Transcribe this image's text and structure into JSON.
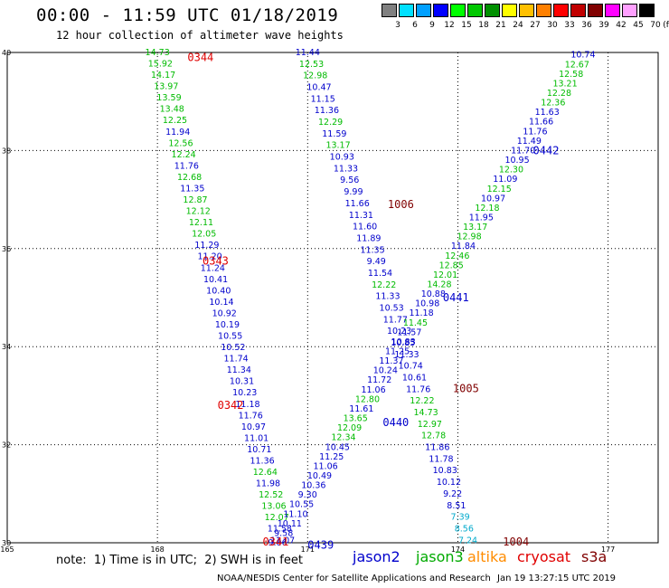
{
  "header": {
    "title": "00:00 - 11:59 UTC 01/18/2019",
    "subtitle": "12 hour collection of altimeter wave heights"
  },
  "legend": {
    "unit": "(ft)",
    "bins": [
      {
        "label": "3",
        "color": "#808080"
      },
      {
        "label": "6",
        "color": "#00e0ff"
      },
      {
        "label": "9",
        "color": "#00a0ff"
      },
      {
        "label": "12",
        "color": "#0000ff"
      },
      {
        "label": "15",
        "color": "#00ff00"
      },
      {
        "label": "18",
        "color": "#00c800"
      },
      {
        "label": "21",
        "color": "#009000"
      },
      {
        "label": "24",
        "color": "#ffff00"
      },
      {
        "label": "27",
        "color": "#ffc000"
      },
      {
        "label": "30",
        "color": "#ff8000"
      },
      {
        "label": "33",
        "color": "#ff0000"
      },
      {
        "label": "36",
        "color": "#c00000"
      },
      {
        "label": "39",
        "color": "#800000"
      },
      {
        "label": "42",
        "color": "#ff00ff"
      },
      {
        "label": "45",
        "color": "#ffa0ff"
      },
      {
        "label": "70",
        "color": "#000000"
      }
    ]
  },
  "footer": {
    "note": "note:  1) Time is in UTC;  2) SWH is in feet",
    "satellites": [
      {
        "name": "jason2",
        "color": "#0000cc"
      },
      {
        "name": "jason3",
        "color": "#00aa00"
      },
      {
        "name": "altika",
        "color": "#ff8c00"
      },
      {
        "name": "cryosat",
        "color": "#e00000"
      },
      {
        "name": "s3a",
        "color": "#800000"
      }
    ],
    "credit": "NOAA/NESDIS Center for Satellite Applications and Research",
    "timestamp": "Jan 19 13:27:15 UTC 2019"
  },
  "chart_data": {
    "type": "scatter",
    "xlim": [
      165,
      178
    ],
    "ylim": [
      30,
      40
    ],
    "xticks": [
      "165",
      "168",
      "171",
      "174",
      "177"
    ],
    "yticks": [
      "40",
      "38",
      "36",
      "34",
      "32",
      "30"
    ],
    "grid": true,
    "colors": {
      "blue": "#0000cc",
      "green": "#00bb00",
      "cyan": "#00aacc",
      "red": "#e00000",
      "darkred": "#800000"
    },
    "tracks": [
      {
        "name": "left-descending",
        "x_start": 168.0,
        "x_end": 170.5,
        "points": [
          [
            "14.73",
            "green"
          ],
          [
            "15.92",
            "green"
          ],
          [
            "14.17",
            "green"
          ],
          [
            "13.97",
            "green"
          ],
          [
            "13.59",
            "green"
          ],
          [
            "13.48",
            "green"
          ],
          [
            "12.25",
            "green"
          ],
          [
            "11.94",
            "blue"
          ],
          [
            "12.56",
            "green"
          ],
          [
            "12.24",
            "green"
          ],
          [
            "11.76",
            "blue"
          ],
          [
            "12.68",
            "green"
          ],
          [
            "11.35",
            "blue"
          ],
          [
            "12.87",
            "green"
          ],
          [
            "12.12",
            "green"
          ],
          [
            "12.11",
            "green"
          ],
          [
            "12.05",
            "green"
          ],
          [
            "11.29",
            "blue"
          ],
          [
            "11.20",
            "blue"
          ],
          [
            "11.24",
            "blue"
          ],
          [
            "10.41",
            "blue"
          ],
          [
            "10.40",
            "blue"
          ],
          [
            "10.14",
            "blue"
          ],
          [
            "10.92",
            "blue"
          ],
          [
            "10.19",
            "blue"
          ],
          [
            "10.55",
            "blue"
          ],
          [
            "10.52",
            "blue"
          ],
          [
            "11.74",
            "blue"
          ],
          [
            "11.34",
            "blue"
          ],
          [
            "10.31",
            "blue"
          ],
          [
            "10.23",
            "blue"
          ],
          [
            "11.18",
            "blue"
          ],
          [
            "11.76",
            "blue"
          ],
          [
            "10.97",
            "blue"
          ],
          [
            "11.01",
            "blue"
          ],
          [
            "10.71",
            "blue"
          ],
          [
            "11.36",
            "blue"
          ],
          [
            "12.64",
            "green"
          ],
          [
            "11.98",
            "blue"
          ],
          [
            "12.52",
            "green"
          ],
          [
            "13.06",
            "green"
          ],
          [
            "12.07",
            "green"
          ],
          [
            "11.58",
            "blue"
          ],
          [
            "11.07",
            "blue"
          ]
        ]
      },
      {
        "name": "mid-descending",
        "x_start": 171.0,
        "x_end": 174.2,
        "points": [
          [
            "11.44",
            "blue"
          ],
          [
            "12.53",
            "green"
          ],
          [
            "12.98",
            "green"
          ],
          [
            "10.47",
            "blue"
          ],
          [
            "11.15",
            "blue"
          ],
          [
            "11.36",
            "blue"
          ],
          [
            "12.29",
            "green"
          ],
          [
            "11.59",
            "blue"
          ],
          [
            "13.17",
            "green"
          ],
          [
            "10.93",
            "blue"
          ],
          [
            "11.33",
            "blue"
          ],
          [
            "9.56",
            "blue"
          ],
          [
            "9.99",
            "blue"
          ],
          [
            "11.66",
            "blue"
          ],
          [
            "11.31",
            "blue"
          ],
          [
            "11.60",
            "blue"
          ],
          [
            "11.89",
            "blue"
          ],
          [
            "11.35",
            "blue"
          ],
          [
            "9.49",
            "blue"
          ],
          [
            "11.54",
            "blue"
          ],
          [
            "12.22",
            "green"
          ],
          [
            "11.33",
            "blue"
          ],
          [
            "10.53",
            "blue"
          ],
          [
            "11.77",
            "blue"
          ],
          [
            "10.23",
            "blue"
          ],
          [
            "10.85",
            "blue"
          ],
          [
            "11.33",
            "blue"
          ],
          [
            "10.74",
            "blue"
          ],
          [
            "10.61",
            "blue"
          ],
          [
            "11.76",
            "blue"
          ],
          [
            "12.22",
            "green"
          ],
          [
            "14.73",
            "green"
          ],
          [
            "12.97",
            "green"
          ],
          [
            "12.78",
            "green"
          ],
          [
            "11.86",
            "blue"
          ],
          [
            "11.78",
            "blue"
          ],
          [
            "10.83",
            "blue"
          ],
          [
            "10.12",
            "blue"
          ],
          [
            "9.22",
            "blue"
          ],
          [
            "8.51",
            "blue"
          ],
          [
            "7.39",
            "cyan"
          ],
          [
            "8.56",
            "cyan"
          ],
          [
            "7.24",
            "cyan"
          ]
        ]
      },
      {
        "name": "ascending",
        "x_start": 170.4,
        "x_end": 176.5,
        "points": [
          [
            "9.06",
            "blue"
          ],
          [
            "9.58",
            "blue"
          ],
          [
            "10.11",
            "blue"
          ],
          [
            "11.10",
            "blue"
          ],
          [
            "10.55",
            "blue"
          ],
          [
            "9.30",
            "blue"
          ],
          [
            "10.36",
            "blue"
          ],
          [
            "10.49",
            "blue"
          ],
          [
            "11.06",
            "blue"
          ],
          [
            "11.25",
            "blue"
          ],
          [
            "10.45",
            "blue"
          ],
          [
            "12.34",
            "green"
          ],
          [
            "12.09",
            "green"
          ],
          [
            "13.65",
            "green"
          ],
          [
            "11.61",
            "blue"
          ],
          [
            "12.80",
            "green"
          ],
          [
            "11.06",
            "blue"
          ],
          [
            "11.72",
            "blue"
          ],
          [
            "10.24",
            "blue"
          ],
          [
            "11.37",
            "blue"
          ],
          [
            "11.25",
            "blue"
          ],
          [
            "10.83",
            "blue"
          ],
          [
            "11.57",
            "blue"
          ],
          [
            "11.45",
            "green"
          ],
          [
            "11.18",
            "blue"
          ],
          [
            "10.98",
            "blue"
          ],
          [
            "10.88",
            "blue"
          ],
          [
            "14.28",
            "green"
          ],
          [
            "12.01",
            "green"
          ],
          [
            "12.85",
            "green"
          ],
          [
            "12.46",
            "green"
          ],
          [
            "11.84",
            "blue"
          ],
          [
            "12.98",
            "green"
          ],
          [
            "13.17",
            "green"
          ],
          [
            "11.95",
            "blue"
          ],
          [
            "12.18",
            "green"
          ],
          [
            "10.97",
            "blue"
          ],
          [
            "12.15",
            "green"
          ],
          [
            "11.09",
            "blue"
          ],
          [
            "12.30",
            "green"
          ],
          [
            "10.95",
            "blue"
          ],
          [
            "11.70",
            "blue"
          ],
          [
            "11.49",
            "blue"
          ],
          [
            "11.76",
            "blue"
          ],
          [
            "11.66",
            "blue"
          ],
          [
            "11.63",
            "blue"
          ],
          [
            "12.36",
            "green"
          ],
          [
            "12.28",
            "green"
          ],
          [
            "13.21",
            "green"
          ],
          [
            "12.58",
            "green"
          ],
          [
            "12.67",
            "green"
          ],
          [
            "10.74",
            "blue"
          ]
        ]
      }
    ],
    "time_labels": [
      {
        "text": "0344",
        "x": 168.6,
        "y": 39.9,
        "color": "red"
      },
      {
        "text": "0343",
        "x": 168.9,
        "y": 35.75,
        "color": "red"
      },
      {
        "text": "0342",
        "x": 169.2,
        "y": 32.8,
        "color": "red"
      },
      {
        "text": "0341",
        "x": 170.1,
        "y": 30.02,
        "color": "red"
      },
      {
        "text": "0439",
        "x": 171.0,
        "y": 29.95,
        "color": "blue"
      },
      {
        "text": "0440",
        "x": 172.5,
        "y": 32.45,
        "color": "blue"
      },
      {
        "text": "0441",
        "x": 173.7,
        "y": 35.0,
        "color": "blue"
      },
      {
        "text": "0442",
        "x": 175.5,
        "y": 38.0,
        "color": "blue"
      },
      {
        "text": "1006",
        "x": 172.6,
        "y": 36.9,
        "color": "darkred"
      },
      {
        "text": "1005",
        "x": 173.9,
        "y": 33.15,
        "color": "darkred"
      },
      {
        "text": "1004",
        "x": 174.9,
        "y": 30.02,
        "color": "darkred"
      }
    ]
  }
}
